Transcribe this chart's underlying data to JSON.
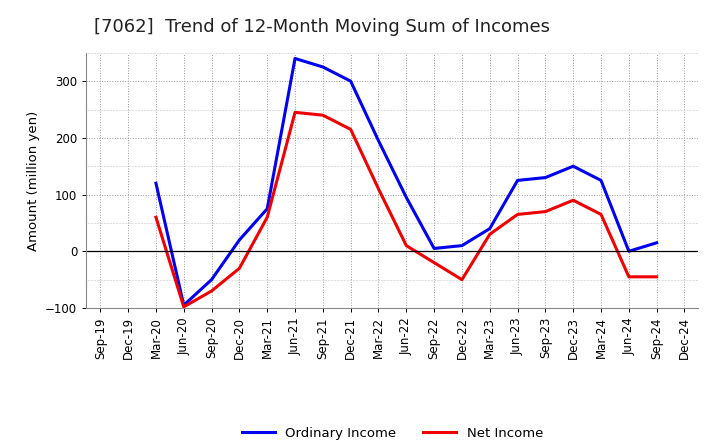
{
  "title": "[7062]  Trend of 12-Month Moving Sum of Incomes",
  "ylabel": "Amount (million yen)",
  "x_labels": [
    "Sep-19",
    "Dec-19",
    "Mar-20",
    "Jun-20",
    "Sep-20",
    "Dec-20",
    "Mar-21",
    "Jun-21",
    "Sep-21",
    "Dec-21",
    "Mar-22",
    "Jun-22",
    "Sep-22",
    "Dec-22",
    "Mar-23",
    "Jun-23",
    "Sep-23",
    "Dec-23",
    "Mar-24",
    "Jun-24",
    "Sep-24",
    "Dec-24"
  ],
  "ordinary_income": [
    null,
    null,
    120,
    -95,
    -50,
    20,
    75,
    340,
    325,
    300,
    195,
    95,
    5,
    10,
    40,
    125,
    130,
    150,
    125,
    0,
    15,
    null
  ],
  "net_income": [
    null,
    null,
    60,
    -98,
    -70,
    -30,
    60,
    245,
    240,
    215,
    110,
    10,
    -20,
    -50,
    30,
    65,
    70,
    90,
    65,
    -45,
    -45,
    null
  ],
  "ordinary_income_color": "#0000ee",
  "net_income_color": "#ee0000",
  "ylim": [
    -100,
    350
  ],
  "major_yticks": [
    -100,
    0,
    100,
    200,
    300
  ],
  "background_color": "#ffffff",
  "grid_color": "#999999",
  "line_width": 2.2,
  "title_fontsize": 13,
  "axis_fontsize": 8.5,
  "legend_fontsize": 9.5
}
